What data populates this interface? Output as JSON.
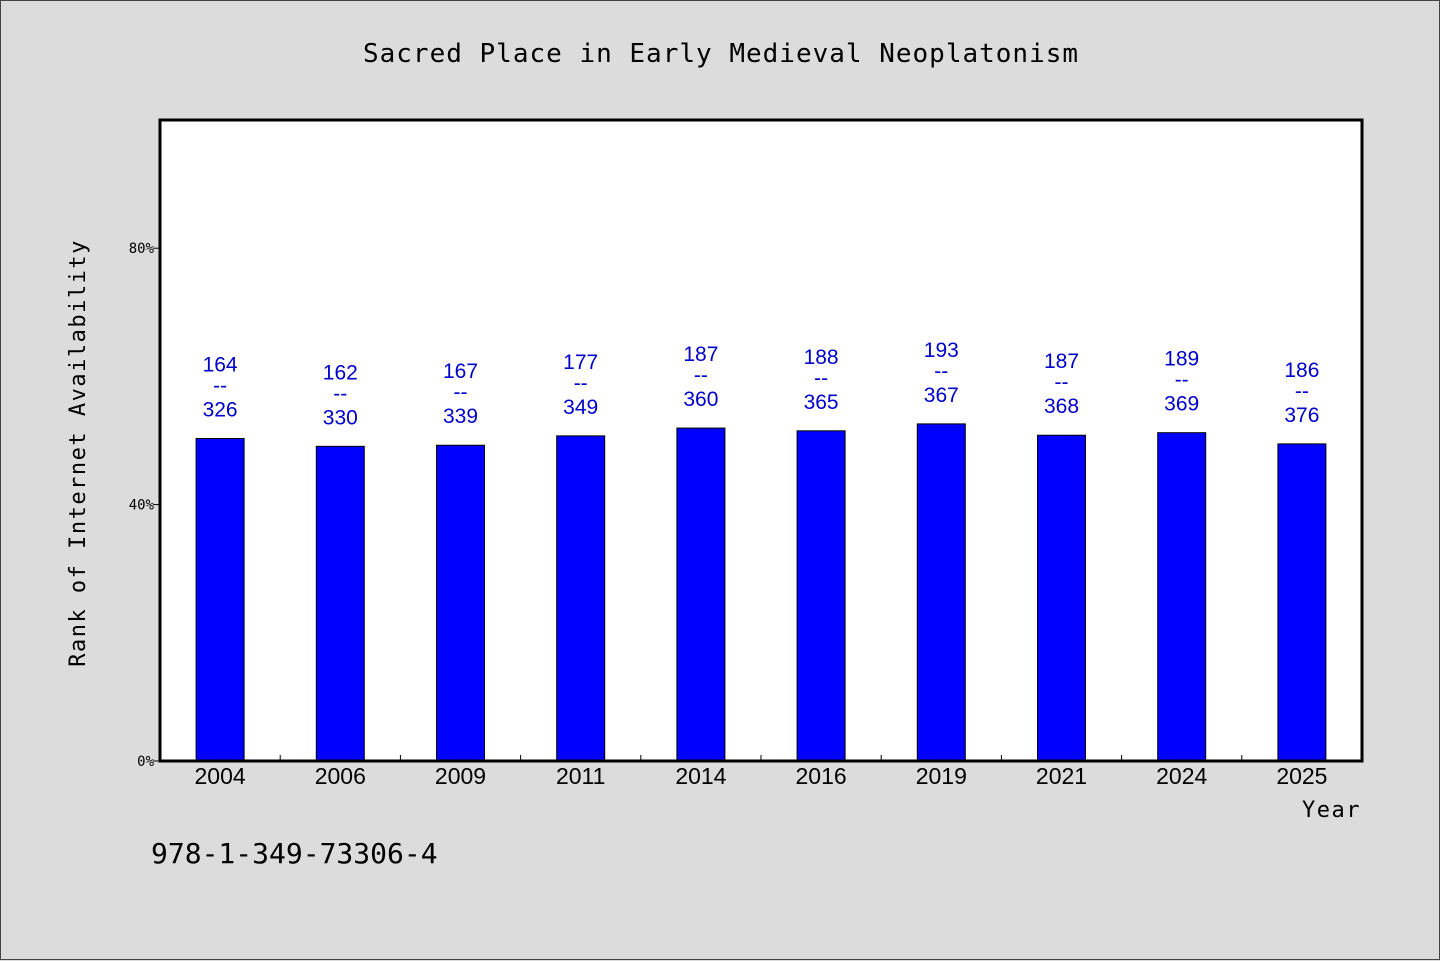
{
  "chart_data": {
    "type": "bar",
    "title": "Sacred Place in Early Medieval Neoplatonism",
    "xlabel": "Year",
    "ylabel": "Rank of Internet Availability",
    "categories": [
      "2004",
      "2006",
      "2009",
      "2011",
      "2014",
      "2016",
      "2019",
      "2021",
      "2024",
      "2025"
    ],
    "values": [
      0.5031,
      0.4909,
      0.4926,
      0.5072,
      0.5194,
      0.5151,
      0.5259,
      0.5082,
      0.5122,
      0.4947
    ],
    "data_labels_top": [
      "164",
      "162",
      "167",
      "177",
      "187",
      "188",
      "193",
      "187",
      "189",
      "186"
    ],
    "data_labels_separator": "--",
    "data_labels_bottom": [
      "326",
      "330",
      "339",
      "349",
      "360",
      "365",
      "367",
      "368",
      "369",
      "376"
    ],
    "y_ticks": [
      "0%",
      "40%",
      "80%"
    ],
    "y_tick_values": [
      0,
      0.4,
      0.8
    ],
    "ylim": [
      0,
      1.0
    ],
    "bar_color": "#0000ff",
    "label_color": "#0000cc",
    "grid": false,
    "legend": "none"
  },
  "footer": {
    "isbn": "978-1-349-73306-4"
  }
}
